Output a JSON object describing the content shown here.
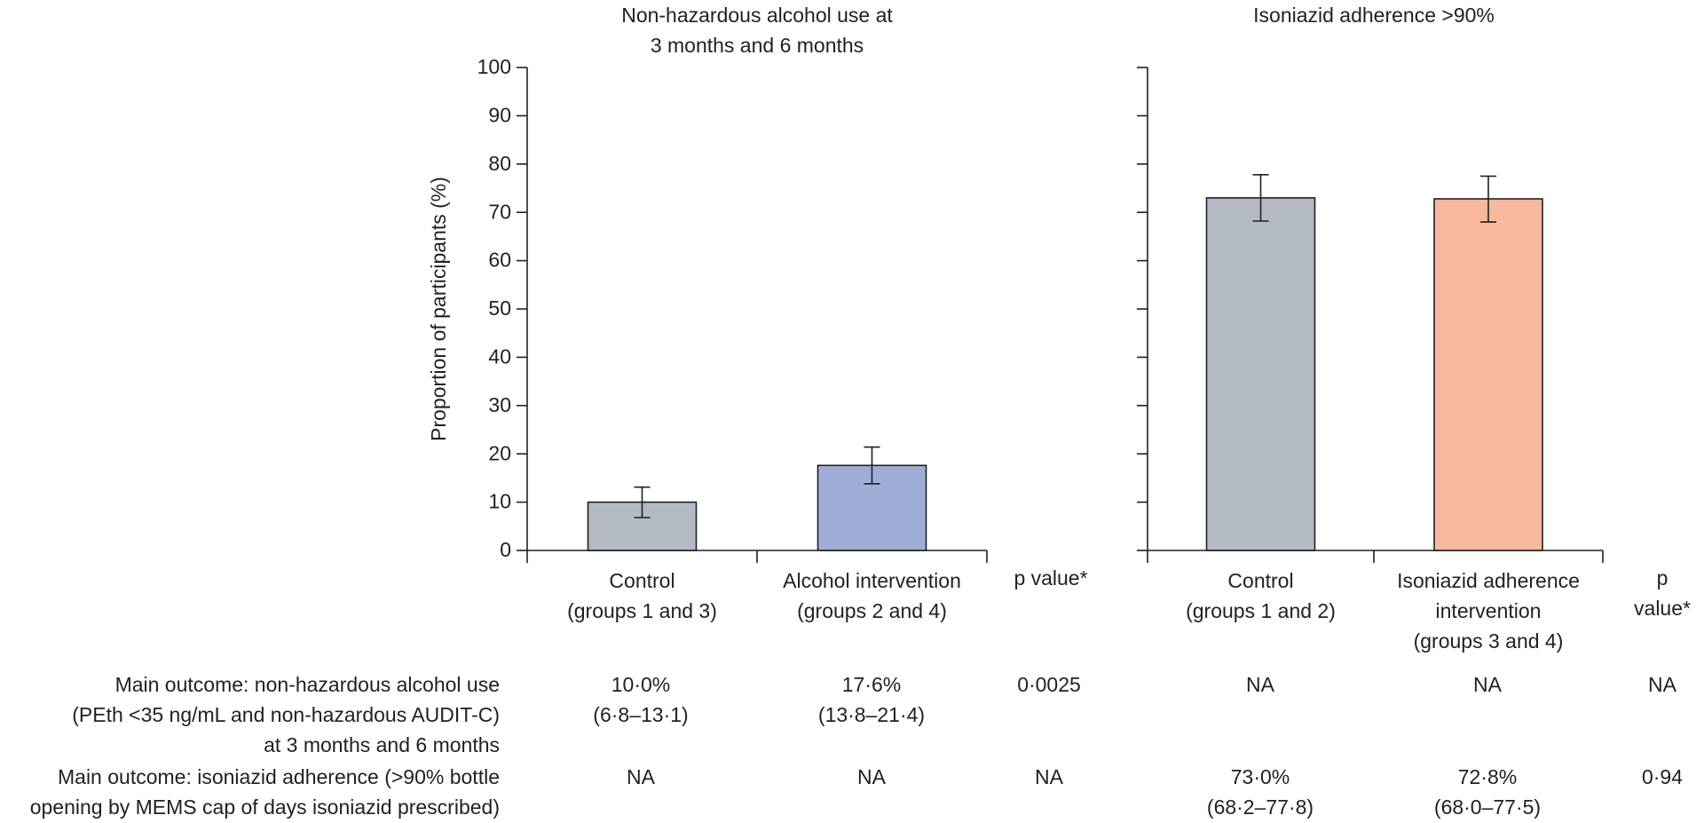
{
  "chart_data": [
    {
      "type": "bar",
      "title": "Non-hazardous alcohol use at\n3 months and 6 months",
      "y_label": "Proportion of participants (%)",
      "categories": [
        "Control\n(groups 1 and 3)",
        "Alcohol intervention\n(groups 2 and 4)"
      ],
      "values": [
        10.0,
        17.6
      ],
      "ci_low": [
        6.8,
        13.8
      ],
      "ci_high": [
        13.1,
        21.4
      ],
      "colors": [
        "#b4bac1",
        "#9eaed6"
      ],
      "ylim": [
        0,
        100
      ],
      "yticks": [
        0,
        10,
        20,
        30,
        40,
        50,
        60,
        70,
        80,
        90,
        100
      ],
      "ytick_labels": true,
      "p_header": "p value*"
    },
    {
      "type": "bar",
      "title": "Isoniazid adherence >90%",
      "categories": [
        "Control\n(groups 1 and 2)",
        "Isoniazid adherence\nintervention\n(groups 3 and 4)"
      ],
      "values": [
        73.0,
        72.8
      ],
      "ci_low": [
        68.2,
        68.0
      ],
      "ci_high": [
        77.8,
        77.5
      ],
      "colors": [
        "#b4bac1",
        "#f7b89d"
      ],
      "ylim": [
        0,
        100
      ],
      "yticks": [
        0,
        10,
        20,
        30,
        40,
        50,
        60,
        70,
        80,
        90,
        100
      ],
      "ytick_labels": false,
      "p_header": "p value*"
    }
  ],
  "table": {
    "rows": [
      {
        "label": "Main outcome: non-hazardous alcohol use\n(PEth <35 ng/mL and non-hazardous AUDIT-C)\nat 3 months and 6 months",
        "cells": [
          "10·0%\n(6·8–13·1)",
          "17·6%\n(13·8–21·4)",
          "0·0025",
          "NA",
          "NA",
          "NA"
        ]
      },
      {
        "label": "Main outcome: isoniazid adherence (>90% bottle\nopening by MEMS cap of days isoniazid prescribed)",
        "cells": [
          "NA",
          "NA",
          "NA",
          "73·0%\n(68·2–77·8)",
          "72·8%\n(68·0–77·5)",
          "0·94"
        ]
      }
    ]
  }
}
